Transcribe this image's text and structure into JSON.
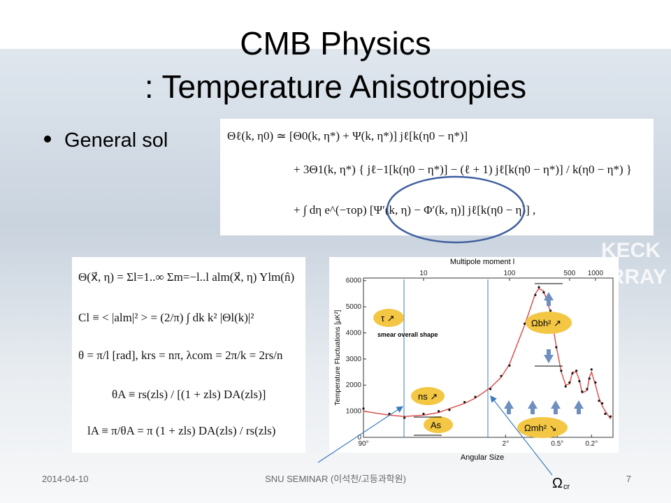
{
  "slide": {
    "title_line1": "CMB Physics",
    "title_line2": ": Temperature Anisotropies",
    "bullet": "General sol",
    "background_text": [
      "KECK",
      "ARRAY"
    ],
    "main_equation": [
      "Θℓ(k, η0) ≃ [Θ0(k, η*) + Ψ(k, η*)] jℓ[k(η0 − η*)]",
      "+ 3Θ1(k, η*) { jℓ−1[k(η0 − η*)] − (ℓ + 1) jℓ[k(η0 − η*)] / k(η0 − η*) }",
      "+ ∫ dη e^(−τop) [Ψ′(k, η) − Φ′(k, η)] jℓ[k(η0 − η)] ,"
    ],
    "left_equations": [
      "Θ(x⃗, η) = Σl=1..∞ Σm=−l..l alm(x⃗, η) Ylm(n̂)",
      "Cl ≡ < |alm|² > = (2/π) ∫ dk k² |Θl(k)|²",
      "θ = π/l [rad], krs = nπ, λcom = 2π/k = 2rs/n",
      "θA ≡ rs(zls) / [(1 + zls) DA(zls)]",
      "lA ≡ π/θA = π (1 + zls) DA(zls) / rs(zls)"
    ],
    "footer": {
      "date": "2014-04-10",
      "seminar": "SNU SEMINAR (이석천/고등과학원)",
      "page": "7"
    },
    "callout": {
      "symbol": "Ω",
      "subscript": "cr"
    }
  },
  "chart_data": {
    "type": "line",
    "x_label": "Multipole moment l",
    "x2_label": "Angular Size",
    "y_label": "Temperature Fluctuations [μK²]",
    "log_x": true,
    "xlim": [
      2,
      1600
    ],
    "xticks": [
      10,
      100,
      500,
      1000
    ],
    "x2ticks": [
      {
        "value": 2,
        "label": "90°"
      },
      {
        "value": 90,
        "label": "2°"
      },
      {
        "value": 360,
        "label": "0.5°"
      },
      {
        "value": 900,
        "label": "0.2°"
      }
    ],
    "ylim": [
      0,
      6100
    ],
    "yticks": [
      0,
      1000,
      2000,
      3000,
      4000,
      5000,
      6000
    ],
    "x": [
      2,
      4,
      6,
      10,
      15,
      20,
      30,
      40,
      60,
      80,
      100,
      150,
      200,
      220,
      250,
      300,
      350,
      400,
      450,
      500,
      540,
      600,
      650,
      700,
      800,
      850,
      900,
      1000,
      1100,
      1200,
      1300,
      1500
    ],
    "series": [
      {
        "style": "line",
        "color": "#d9534f",
        "values": [
          1000,
          850,
          800,
          850,
          950,
          1100,
          1300,
          1500,
          1900,
          2300,
          2800,
          4300,
          5500,
          5700,
          5600,
          4800,
          3500,
          2500,
          2000,
          2050,
          2500,
          2500,
          2200,
          1700,
          1800,
          2300,
          2500,
          2000,
          1500,
          1200,
          1000,
          700
        ]
      },
      {
        "style": "dots",
        "color": "#111111",
        "values": [
          1100,
          900,
          750,
          900,
          1000,
          1050,
          1350,
          1550,
          1850,
          2350,
          2750,
          4350,
          5450,
          5750,
          5550,
          4850,
          3450,
          2550,
          1950,
          2100,
          2450,
          2550,
          2150,
          1750,
          1850,
          2250,
          2600,
          2100,
          1400,
          1300,
          900,
          800
        ]
      }
    ],
    "annotations": [
      "τ ↗",
      "smear overall shape",
      "Ωbh² ↗",
      "ns ↗",
      "As",
      "Ωmh² ↘"
    ]
  }
}
